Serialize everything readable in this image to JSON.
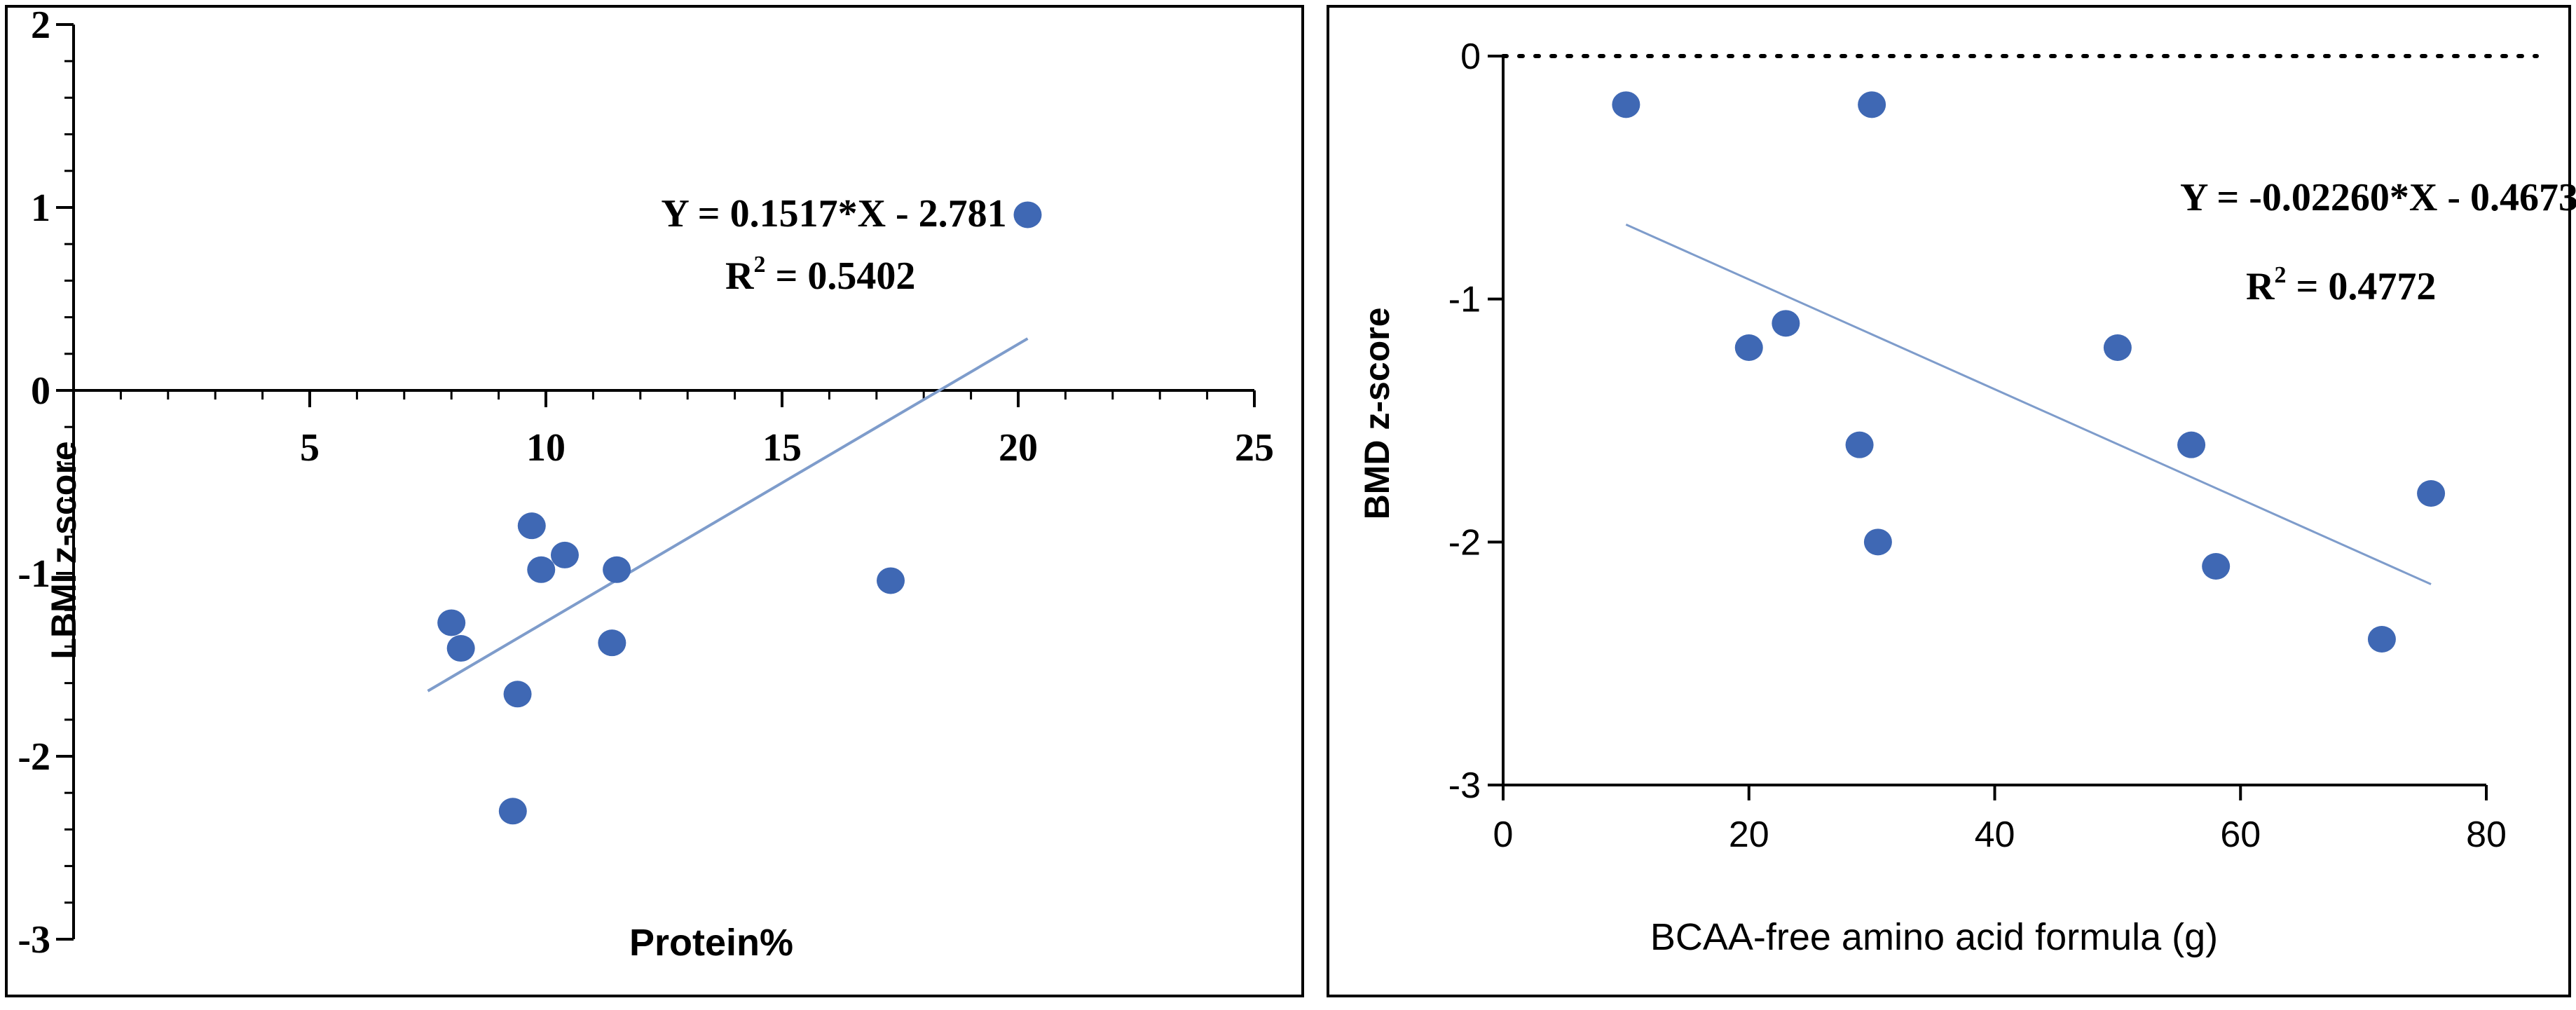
{
  "colors": {
    "point": "#3F68B4",
    "trend": "#7E9CCB",
    "axis": "#000000",
    "frame": "#000000"
  },
  "chart_data": [
    {
      "type": "scatter",
      "title": "",
      "xlabel": "Protein%",
      "ylabel": "LBMI z-score",
      "xlim": [
        0,
        25
      ],
      "ylim": [
        -3,
        2
      ],
      "x_ticks": [
        5,
        10,
        15,
        20,
        25
      ],
      "x_tick_labels": [
        "5",
        "10",
        "15",
        "20",
        "25"
      ],
      "y_ticks": [
        -3,
        -2,
        -1,
        0,
        1,
        2
      ],
      "y_tick_labels": [
        "-3",
        "-2",
        "-1",
        "0",
        "1",
        "2"
      ],
      "x_minor_step": 1,
      "y_minor_step": 0.2,
      "x_axis_at_y": 0,
      "grid": false,
      "points": [
        {
          "x": 8.0,
          "y": -1.27
        },
        {
          "x": 8.2,
          "y": -1.41
        },
        {
          "x": 9.3,
          "y": -2.3
        },
        {
          "x": 9.4,
          "y": -1.66
        },
        {
          "x": 9.7,
          "y": -0.74
        },
        {
          "x": 9.9,
          "y": -0.98
        },
        {
          "x": 10.4,
          "y": -0.9
        },
        {
          "x": 11.4,
          "y": -1.38
        },
        {
          "x": 11.5,
          "y": -0.98
        },
        {
          "x": 17.3,
          "y": -1.04
        },
        {
          "x": 20.2,
          "y": 0.96
        }
      ],
      "fit": {
        "slope": 0.1517,
        "intercept": -2.781,
        "x_range": [
          7.5,
          20.2
        ],
        "dotted": false
      },
      "annotations": [
        {
          "id": "equation",
          "text": "Y = 0.1517*X - 2.781"
        },
        {
          "id": "r2",
          "label": "R",
          "sup": "2",
          "text": " = 0.5402"
        }
      ]
    },
    {
      "type": "scatter",
      "title": "",
      "xlabel": "BCAA-free amino acid formula (g)",
      "ylabel": "BMD z-score",
      "xlim": [
        0,
        80
      ],
      "ylim": [
        -3,
        0
      ],
      "x_ticks": [
        0,
        20,
        40,
        60,
        80
      ],
      "x_tick_labels": [
        "0",
        "20",
        "40",
        "60",
        "80"
      ],
      "y_ticks": [
        -3,
        -2,
        -1,
        0
      ],
      "y_tick_labels": [
        "-3",
        "-2",
        "-1",
        "0"
      ],
      "x_minor_step": null,
      "y_minor_step": null,
      "x_axis_at_y": -3,
      "reference_line_y": 0,
      "grid": false,
      "points": [
        {
          "x": 10,
          "y": -0.2
        },
        {
          "x": 20,
          "y": -1.2
        },
        {
          "x": 23,
          "y": -1.1
        },
        {
          "x": 29,
          "y": -1.6
        },
        {
          "x": 30,
          "y": -0.2
        },
        {
          "x": 30.5,
          "y": -2.0
        },
        {
          "x": 50,
          "y": -1.2
        },
        {
          "x": 56,
          "y": -1.6
        },
        {
          "x": 58,
          "y": -2.1
        },
        {
          "x": 71.5,
          "y": -2.4
        },
        {
          "x": 75.5,
          "y": -1.8
        }
      ],
      "fit": {
        "slope": -0.0226,
        "intercept": -0.4673,
        "x_range": [
          10,
          75.5
        ],
        "dotted": false
      },
      "annotations": [
        {
          "id": "equation",
          "text": "Y = -0.02260*X - 0.4673"
        },
        {
          "id": "r2",
          "label": "R",
          "sup": "2",
          "text": " = 0.4772"
        }
      ]
    }
  ]
}
